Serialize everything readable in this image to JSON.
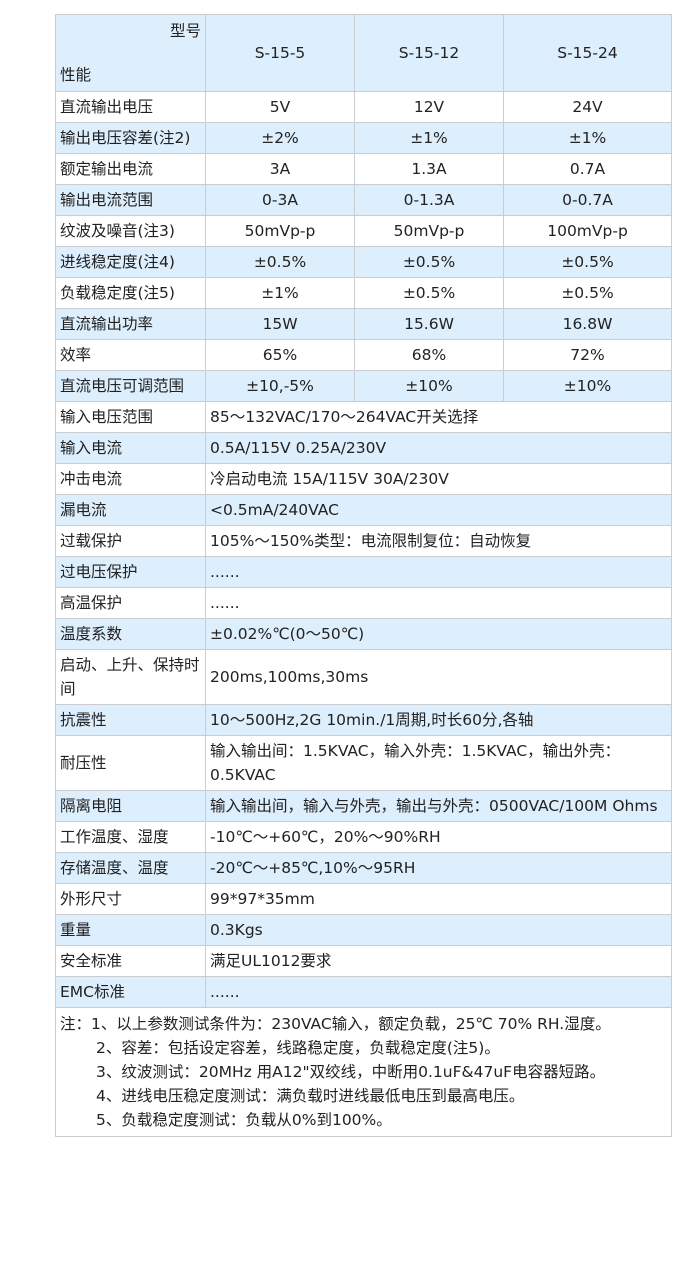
{
  "header": {
    "corner_top": "型号",
    "corner_bottom": "性能",
    "models": [
      "S-15-5",
      "S-15-12",
      "S-15-24"
    ]
  },
  "model_rows": [
    {
      "label": "直流输出电压",
      "values": [
        "5V",
        "12V",
        "24V"
      ]
    },
    {
      "label": "输出电压容差(注2)",
      "values": [
        "±2%",
        "±1%",
        "±1%"
      ]
    },
    {
      "label": "额定输出电流",
      "values": [
        "3A",
        "1.3A",
        "0.7A"
      ]
    },
    {
      "label": "输出电流范围",
      "values": [
        "0-3A",
        "0-1.3A",
        "0-0.7A"
      ]
    },
    {
      "label": "纹波及噪音(注3)",
      "values": [
        "50mVp-p",
        "50mVp-p",
        "100mVp-p"
      ]
    },
    {
      "label": "进线稳定度(注4)",
      "values": [
        "±0.5%",
        "±0.5%",
        "±0.5%"
      ]
    },
    {
      "label": "负载稳定度(注5)",
      "values": [
        "±1%",
        "±0.5%",
        "±0.5%"
      ]
    },
    {
      "label": "直流输出功率",
      "values": [
        "15W",
        "15.6W",
        "16.8W"
      ]
    },
    {
      "label": "效率",
      "values": [
        "65%",
        "68%",
        "72%"
      ]
    },
    {
      "label": "直流电压可调范围",
      "values": [
        "±10,-5%",
        "±10%",
        "±10%"
      ]
    }
  ],
  "common_rows": [
    {
      "label": "输入电压范围",
      "value": "85～132VAC/170～264VAC开关选择"
    },
    {
      "label": "输入电流",
      "value": "0.5A/115V 0.25A/230V"
    },
    {
      "label": "冲击电流",
      "value": "冷启动电流 15A/115V 30A/230V"
    },
    {
      "label": "漏电流",
      "value": "<0.5mA/240VAC"
    },
    {
      "label": "过载保护",
      "value": "105%～150%类型：电流限制复位：自动恢复"
    },
    {
      "label": "过电压保护",
      "value": "......"
    },
    {
      "label": "高温保护",
      "value": "......"
    },
    {
      "label": "温度系数",
      "value": "±0.02%℃(0～50℃)"
    },
    {
      "label": "启动、上升、保持时间",
      "value": "200ms,100ms,30ms"
    },
    {
      "label": "抗震性",
      "value": "10～500Hz,2G 10min./1周期,时长60分,各轴"
    },
    {
      "label": "耐压性",
      "value": "输入输出间：1.5KVAC，输入外壳：1.5KVAC，输出外壳：0.5KVAC"
    },
    {
      "label": "隔离电阻",
      "value": "输入输出间，输入与外壳，输出与外壳：0500VAC/100M Ohms"
    },
    {
      "label": "工作温度、湿度",
      "value": "-10℃～+60℃，20%～90%RH"
    },
    {
      "label": "存储温度、温度",
      "value": "-20℃～+85℃,10%～95RH"
    },
    {
      "label": "外形尺寸",
      "value": "99*97*35mm"
    },
    {
      "label": "重量",
      "value": "0.3Kgs"
    },
    {
      "label": "安全标准",
      "value": "满足UL1012要求"
    },
    {
      "label": "EMC标准",
      "value": "......"
    }
  ],
  "notes": [
    "注：1、以上参数测试条件为：230VAC输入，额定负载，25℃ 70% RH.湿度。",
    "2、容差：包括设定容差，线路稳定度，负载稳定度(注5)。",
    "3、纹波测试：20MHz 用A12\"双绞线，中断用0.1uF&47uF电容器短路。",
    "4、进线电压稳定度测试：满负载时进线最低电压到最高电压。",
    "5、负载稳定度测试：负载从0%到100%。"
  ],
  "colors": {
    "row_alt": "#ddeefd",
    "border": "#c9cdd2"
  }
}
